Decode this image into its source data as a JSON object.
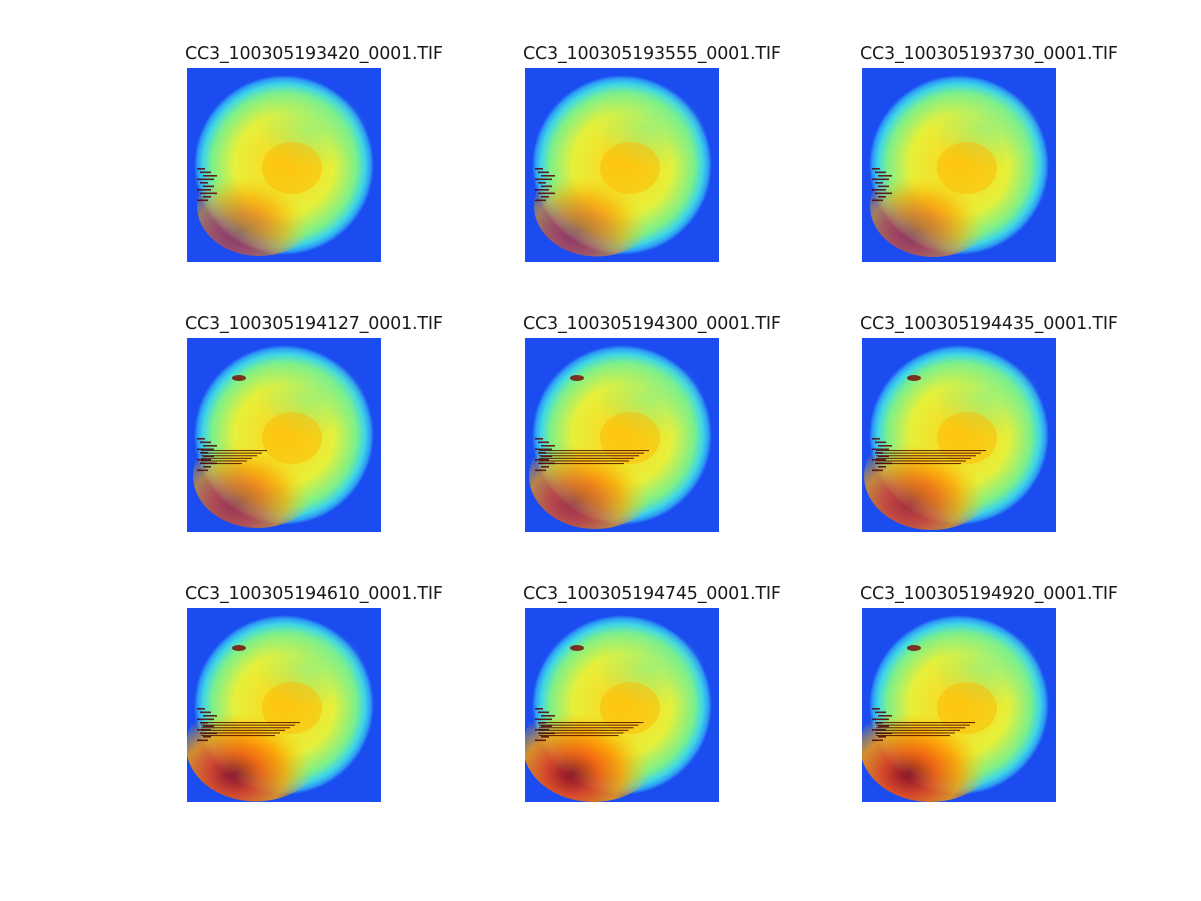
{
  "figure": {
    "panels": [
      {
        "title": "CC3_100305193420_0001.TIF",
        "streak": 0,
        "dark": 0.0
      },
      {
        "title": "CC3_100305193555_0001.TIF",
        "streak": 0,
        "dark": 0.05
      },
      {
        "title": "CC3_100305193730_0001.TIF",
        "streak": 0,
        "dark": 0.1
      },
      {
        "title": "CC3_100305194127_0001.TIF",
        "streak": 0.2,
        "dark": 0.2
      },
      {
        "title": "CC3_100305194300_0001.TIF",
        "streak": 1,
        "dark": 0.3
      },
      {
        "title": "CC3_100305194435_0001.TIF",
        "streak": 1,
        "dark": 0.4
      },
      {
        "title": "CC3_100305194610_0001.TIF",
        "streak": 0.8,
        "dark": 0.55
      },
      {
        "title": "CC3_100305194745_0001.TIF",
        "streak": 0.9,
        "dark": 0.6
      },
      {
        "title": "CC3_100305194920_0001.TIF",
        "streak": 0.8,
        "dark": 0.6
      }
    ],
    "colormap": "jet",
    "background_color": "#1a4cf0"
  }
}
